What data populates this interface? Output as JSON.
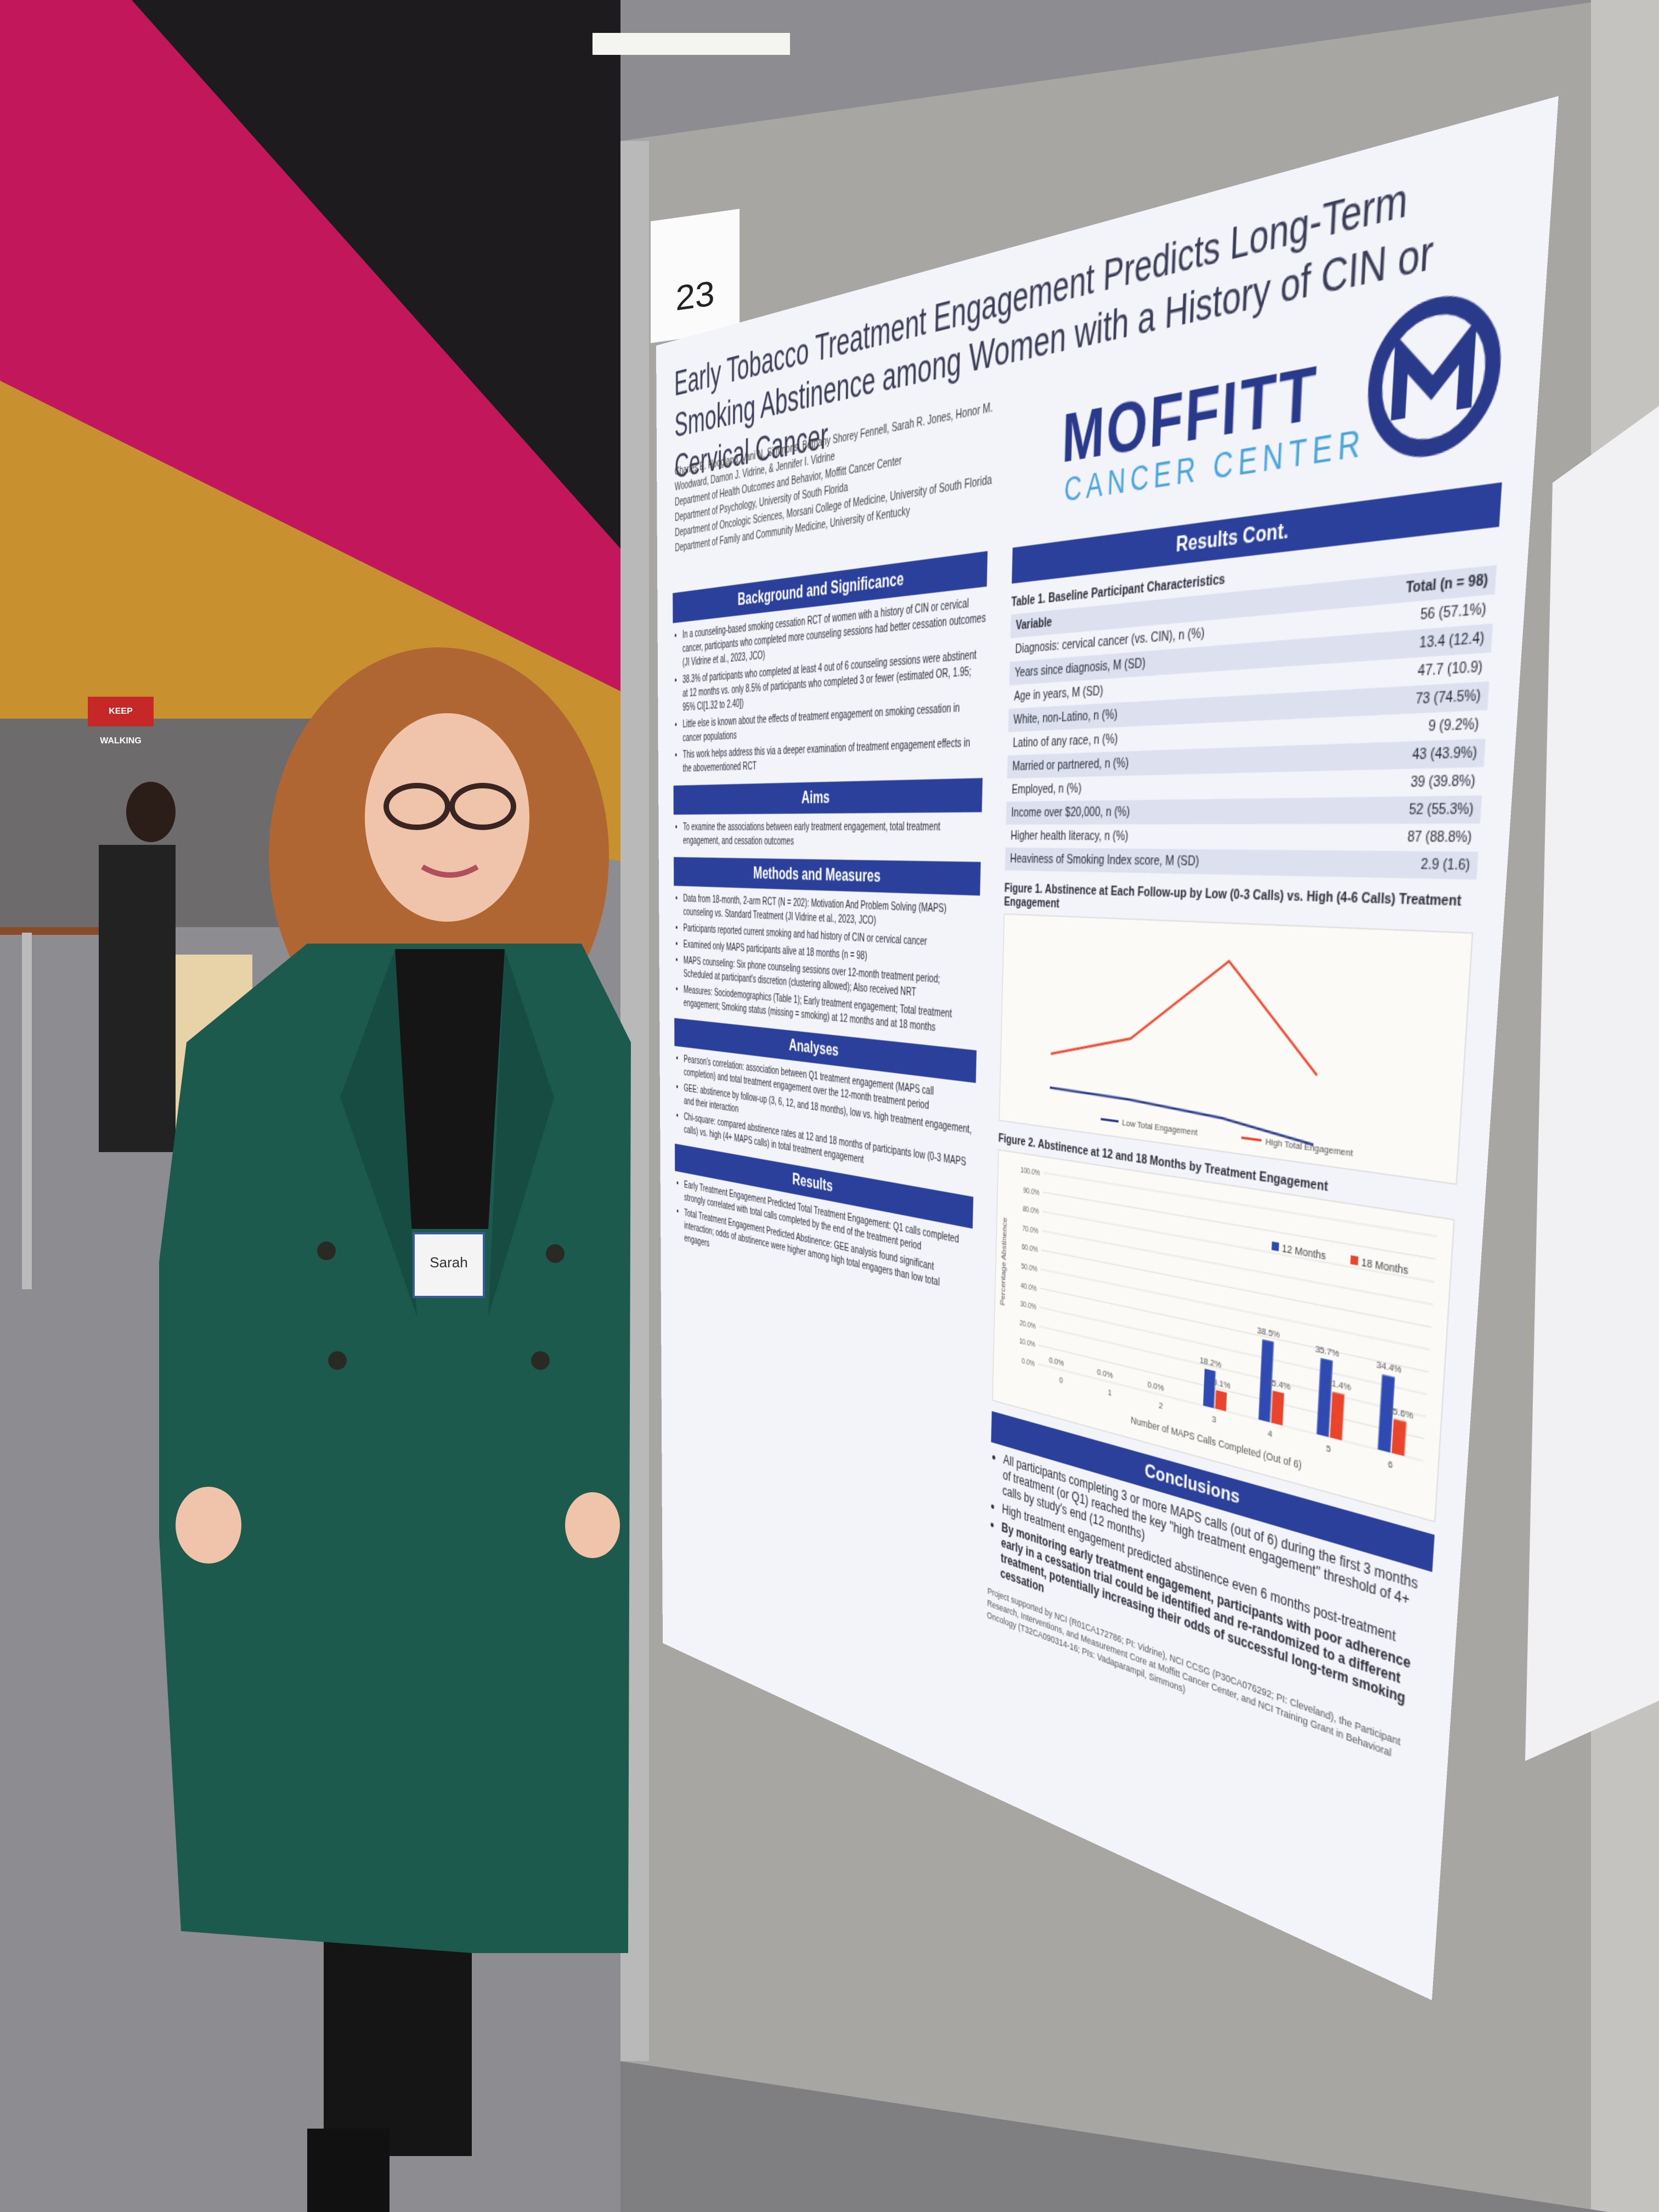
{
  "sign": "KEEP WALKING",
  "badge": "Sarah",
  "poster": {
    "number": "23",
    "title": "Early Tobacco Treatment Engagement Predicts Long-Term Smoking Abstinence among Women with a History of CIN or Cervical Cancer",
    "authors": "Charles E. Hoogland, Vani N. Simmons, Bethany Shorey Fennell, Sarah R. Jones, Honor M. Woodward, Damon J. Vidrine, & Jennifer I. Vidrine",
    "affiliations": [
      "Department of Health Outcomes and Behavior, Moffitt Cancer Center",
      "Department of Psychology, University of South Florida",
      "Department of Oncologic Sciences, Morsani College of Medicine, University of South Florida",
      "Department of Family and Community Medicine, University of Kentucky"
    ],
    "logo": {
      "name": "MOFFITT",
      "sub": "CANCER CENTER"
    },
    "sections": [
      {
        "heading": "Background and Significance",
        "bullets": [
          "In a counseling-based smoking cessation RCT of women with a history of CIN or cervical cancer, participants who completed more counseling sessions had better cessation outcomes (JI Vidrine et al., 2023, JCO)",
          "38.3% of participants who completed at least 4 out of 6 counseling sessions were abstinent at 12 months vs. only 8.5% of participants who completed 3 or fewer (estimated OR, 1.95; 95% CI[1.32 to 2.40])",
          "Little else is known about the effects of treatment engagement on smoking cessation in cancer populations",
          "This work helps address this via a deeper examination of treatment engagement effects in the abovementioned RCT"
        ]
      },
      {
        "heading": "Aims",
        "bullets": [
          "To examine the associations between early treatment engagement, total treatment engagement, and cessation outcomes"
        ]
      },
      {
        "heading": "Methods and Measures",
        "bullets": [
          "Data from 18-month, 2-arm RCT (N = 202): Motivation And Problem Solving (MAPS) counseling vs. Standard Treatment (JI Vidrine et al., 2023, JCO)",
          "Participants reported current smoking and had history of CIN or cervical cancer",
          "Examined only MAPS participants alive at 18 months (n = 98)",
          "MAPS counseling: Six phone counseling sessions over 12-month treatment period; Scheduled at participant's discretion (clustering allowed); Also received NRT",
          "Measures: Sociodemographics (Table 1); Early treatment engagement; Total treatment engagement; Smoking status (missing = smoking) at 12 months and at 18 months"
        ]
      },
      {
        "heading": "Analyses",
        "bullets": [
          "Pearson's correlation: association between Q1 treatment engagement (MAPS call completion) and total treatment engagement over the 12-month treatment period",
          "GEE: abstinence by follow-up (3, 6, 12, and 18 months), low vs. high treatment engagement, and their interaction",
          "Chi-square: compared abstinence rates at 12 and 18 months of participants low (0-3 MAPS calls) vs. high (4+ MAPS calls) in total treatment engagement"
        ]
      },
      {
        "heading": "Results",
        "bullets": [
          "Early Treatment Engagement Predicted Total Treatment Engagement: Q1 calls completed strongly correlated with total calls completed by the end of the treatment period",
          "Total Treatment Engagement Predicted Abstinence: GEE analysis found significant interaction; odds of abstinence were higher among high total engagers than low total engagers"
        ]
      }
    ],
    "results_cont": {
      "heading": "Results Cont.",
      "table_title": "Table 1. Baseline Participant Characteristics",
      "header": [
        "Variable",
        "Total (n = 98)"
      ],
      "rows": [
        [
          "Diagnosis: cervical cancer (vs. CIN), n (%)",
          "56 (57.1%)"
        ],
        [
          "Years since diagnosis, M (SD)",
          "13.4 (12.4)"
        ],
        [
          "Age in years, M (SD)",
          "47.7 (10.9)"
        ],
        [
          "White, non-Latino, n (%)",
          "73 (74.5%)"
        ],
        [
          "Latino of any race, n (%)",
          "9 (9.2%)"
        ],
        [
          "Married or partnered, n (%)",
          "43 (43.9%)"
        ],
        [
          "Employed, n (%)",
          "39 (39.8%)"
        ],
        [
          "Income over $20,000, n (%)",
          "52 (55.3%)"
        ],
        [
          "Higher health literacy, n (%)",
          "87 (88.8%)"
        ],
        [
          "Heaviness of Smoking Index score, M (SD)",
          "2.9 (1.6)"
        ]
      ]
    },
    "figure1": {
      "title": "Figure 1. Abstinence at Each Follow-up by Low (0-3 Calls) vs. High (4-6 Calls) Treatment Engagement",
      "legend": [
        "Low Total Engagement",
        "High Total Engagement"
      ]
    },
    "conclusions": {
      "heading": "Conclusions",
      "bullets": [
        "All participants completing 3 or more MAPS calls (out of 6) during the first 3 months of treatment (or Q1) reached the key \"high treatment engagement\" threshold of 4+ calls by study's end (12 months)",
        "High treatment engagement predicted abstinence even 6 months post-treatment",
        "By monitoring early treatment engagement, participants with poor adherence early in a cessation trial could be identified and re-randomized to a different treatment, potentially increasing their odds of successful long-term smoking cessation"
      ]
    },
    "funding": "Project supported by NCI (R01CA172786; PI: Vidrine), NCI CCSG (P30CA076292; PI: Cleveland), the Participant Research, Interventions, and Measurement Core at Moffitt Cancer Center, and NCI Training Grant in Behavioral Oncology (T32CA090314-16; PIs: Vadaparampil, Simmons)"
  },
  "chart_data": {
    "type": "bar",
    "title": "Figure 2. Abstinence at 12 and 18 Months by Treatment Engagement",
    "x_label": "Number of MAPS Calls Completed (Out of 6)",
    "y_label": "Percentage Abstinence",
    "categories": [
      "0",
      "1",
      "2",
      "3",
      "4",
      "5",
      "6"
    ],
    "series": [
      {
        "name": "12 Months",
        "color": "#2f4ab0",
        "values": [
          0,
          0,
          0,
          18.2,
          38.5,
          35.7,
          34.4
        ],
        "value_labels": [
          "0.0%",
          "0.0%",
          "0.0%",
          "18.2%",
          "38.5%",
          "35.7%",
          "34.4%"
        ]
      },
      {
        "name": "18 Months",
        "color": "#e8452c",
        "values": [
          0,
          0,
          0,
          9.1,
          15.4,
          21.4,
          15.6
        ],
        "value_labels": [
          null,
          null,
          null,
          "9.1%",
          "15.4%",
          "21.4%",
          "15.6%"
        ]
      }
    ],
    "ylim": [
      0,
      100
    ],
    "yticks": [
      {
        "value": 0,
        "label": "0.0%"
      },
      {
        "value": 10,
        "label": "10.0%"
      },
      {
        "value": 20,
        "label": "20.0%"
      },
      {
        "value": 30,
        "label": "30.0%"
      },
      {
        "value": 40,
        "label": "40.0%"
      },
      {
        "value": 50,
        "label": "50.0%"
      },
      {
        "value": 60,
        "label": "60.0%"
      },
      {
        "value": 70,
        "label": "70.0%"
      },
      {
        "value": 80,
        "label": "80.0%"
      },
      {
        "value": 90,
        "label": "90.0%"
      },
      {
        "value": 100,
        "label": "100.0%"
      }
    ],
    "legend": "top-right"
  }
}
